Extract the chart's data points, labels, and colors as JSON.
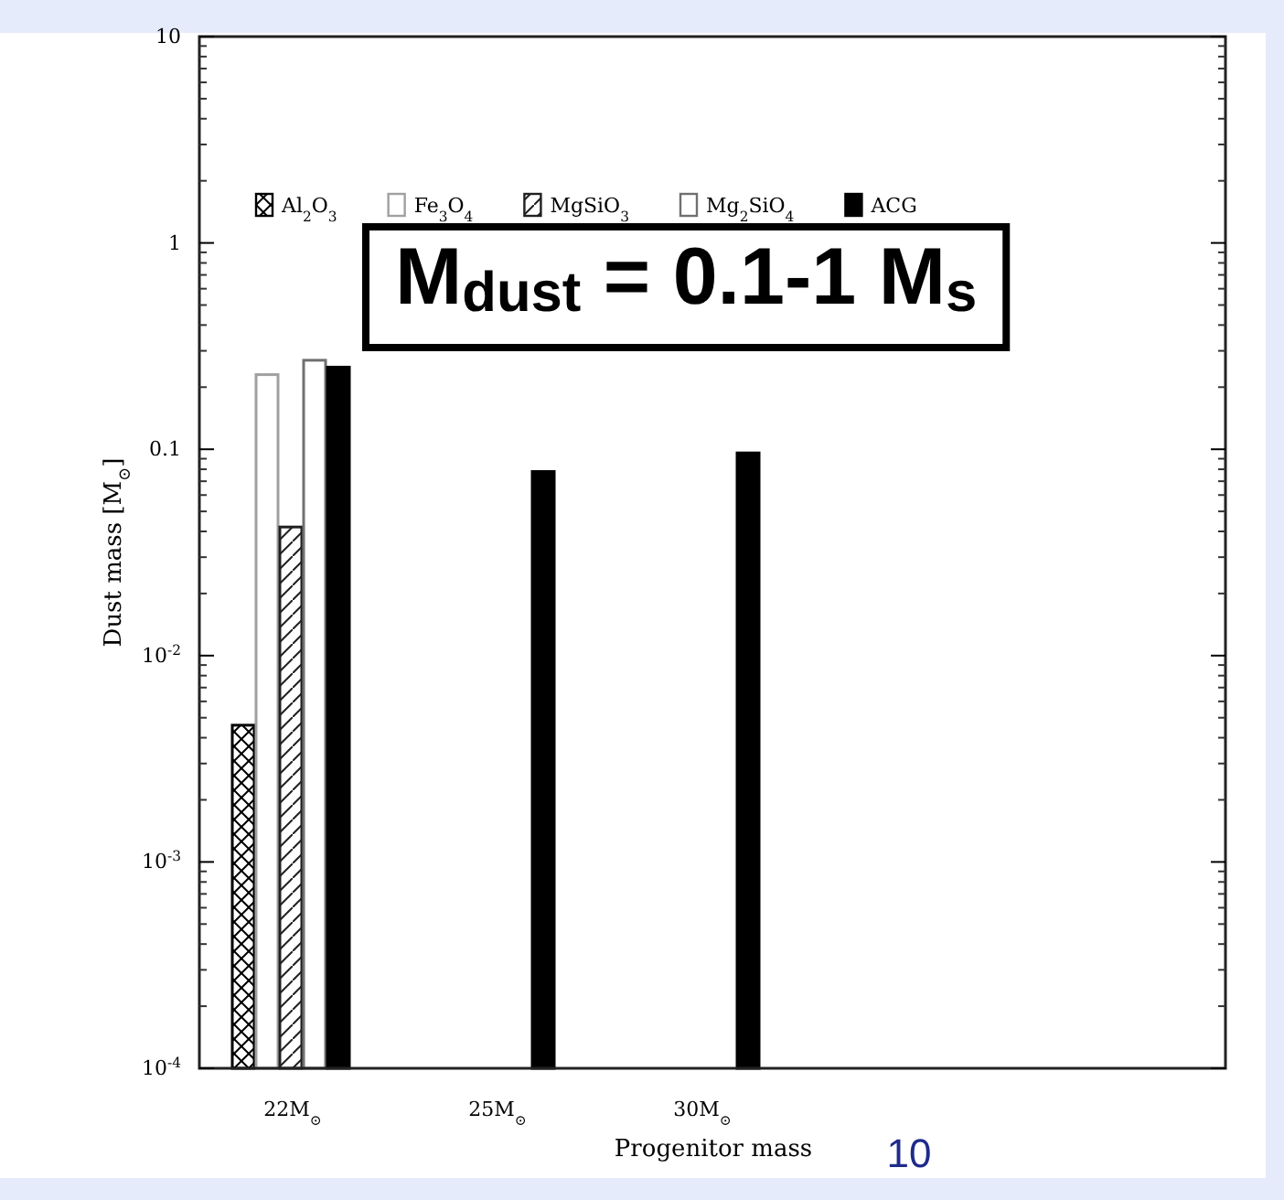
{
  "chart_data": {
    "type": "bar",
    "xlabel": "Progenitor mass",
    "ylabel": "Dust mass [M$_{⊙}$]",
    "categories": [
      "22M$_{⊙}$",
      "25M$_{⊙}$",
      "30M$_{⊙}$",
      null,
      null
    ],
    "series": [
      {
        "name": "Al$_{2}$O$_{3}$",
        "color": "#000000",
        "values": [
          0.0046,
          null,
          null,
          null,
          null
        ]
      },
      {
        "name": "Fe$_{3}$O$_{4}$",
        "color": "#a0a0a0",
        "values": [
          0.23,
          null,
          null,
          null,
          null
        ]
      },
      {
        "name": "MgSiO$_{3}$",
        "color": "#202020",
        "values": [
          0.042,
          null,
          null,
          null,
          null
        ]
      },
      {
        "name": "Mg$_{2}$SiO$_{4}$",
        "color": "#707070",
        "values": [
          0.27,
          null,
          null,
          null,
          null
        ]
      },
      {
        "name": "ACG",
        "color": "#000000",
        "values": [
          0.25,
          0.078,
          0.096,
          null,
          null
        ]
      }
    ],
    "log": true,
    "ylim": [
      0.0001,
      10
    ],
    "yticks": [
      10,
      1,
      0.1,
      {
        "value": 0.01,
        "label": "10$^{-2}$"
      },
      {
        "value": 0.001,
        "label": "10$^{-3}$"
      },
      {
        "value": 0.0001,
        "label": "10$^{-4}$"
      }
    ],
    "legend": "top",
    "annotations": [
      "M$_{dust}$ = 0.1-1 M$_{s}$",
      "10"
    ]
  }
}
